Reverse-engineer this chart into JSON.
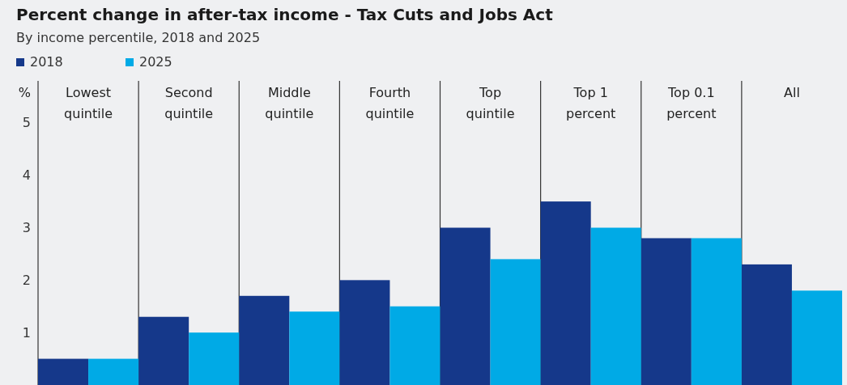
{
  "chart_data": {
    "type": "bar",
    "title": "Percent change in after-tax income - Tax Cuts and Jobs Act",
    "subtitle": "By income percentile, 2018 and 2025",
    "ylabel": "%",
    "categories": [
      "Lowest\nquintile",
      "Second\nquintile",
      "Middle\nquintile",
      "Fourth\nquintile",
      "Top\nquintile",
      "Top 1\npercent",
      "Top 0.1\npercent",
      "All"
    ],
    "series": [
      {
        "name": "2018",
        "color": "#15388a",
        "values": [
          0.5,
          1.3,
          1.7,
          2.0,
          3.0,
          3.5,
          2.8,
          2.3
        ]
      },
      {
        "name": "2025",
        "color": "#00aae6",
        "values": [
          0.5,
          1.0,
          1.4,
          1.5,
          2.4,
          3.0,
          2.8,
          1.8
        ]
      }
    ],
    "ylim": [
      0,
      5.8
    ],
    "yticks": [
      1,
      2,
      3,
      4,
      5
    ],
    "grid": false,
    "legend": "top left"
  }
}
